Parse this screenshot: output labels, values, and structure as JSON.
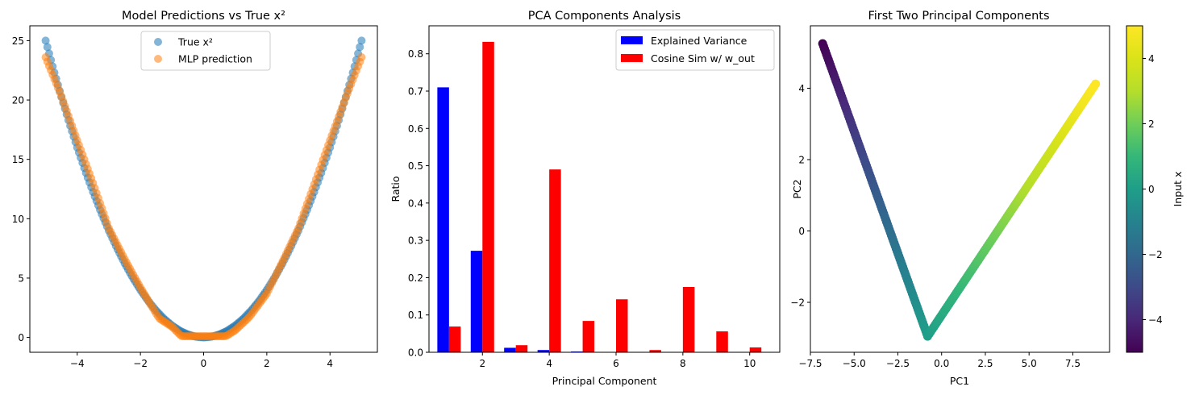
{
  "chart_data": [
    {
      "type": "scatter",
      "title": "Model Predictions vs True x²",
      "xlabel": "",
      "ylabel": "",
      "xlim": [
        -5.5,
        5.5
      ],
      "ylim": [
        -1.25,
        26.25
      ],
      "xticks": [
        -4,
        -2,
        0,
        2,
        4
      ],
      "xtick_labels": [
        "−4",
        "−2",
        "0",
        "2",
        "4"
      ],
      "yticks": [
        0,
        5,
        10,
        15,
        20,
        25
      ],
      "ytick_labels": [
        "0",
        "5",
        "10",
        "15",
        "20",
        "25"
      ],
      "legend_position": "top-center",
      "series": [
        {
          "name": "True x²",
          "color": "#1f77b4",
          "x": [
            -5,
            -4.75,
            -4.5,
            -4.25,
            -4,
            -3.75,
            -3.5,
            -3.25,
            -3,
            -2.75,
            -2.5,
            -2.25,
            -2,
            -1.75,
            -1.5,
            -1.25,
            -1,
            -0.75,
            -0.5,
            -0.25,
            0,
            0.25,
            0.5,
            0.75,
            1,
            1.25,
            1.5,
            1.75,
            2,
            2.25,
            2.5,
            2.75,
            3,
            3.25,
            3.5,
            3.75,
            4,
            4.25,
            4.5,
            4.75,
            5
          ],
          "y": [
            25,
            22.56,
            20.25,
            18.06,
            16,
            14.06,
            12.25,
            10.56,
            9,
            7.56,
            6.25,
            5.06,
            4,
            3.06,
            2.25,
            1.56,
            1,
            0.56,
            0.25,
            0.06,
            0,
            0.06,
            0.25,
            0.56,
            1,
            1.56,
            2.25,
            3.06,
            4,
            5.06,
            6.25,
            7.56,
            9,
            10.56,
            12.25,
            14.06,
            16,
            18.06,
            20.25,
            22.56,
            25
          ]
        },
        {
          "name": "MLP prediction",
          "color": "#ff7f0e",
          "x": [
            -5,
            -4.5,
            -4,
            -3.5,
            -3,
            -2.5,
            -2,
            -1.5,
            -1.4,
            -1,
            -0.7,
            0,
            0.7,
            1,
            1.4,
            1.5,
            2,
            2.5,
            3,
            3.5,
            4,
            4.5,
            5
          ],
          "y": [
            23.6,
            20.3,
            16.6,
            13.0,
            9.2,
            6.6,
            4.2,
            2.0,
            1.6,
            0.9,
            0.1,
            0.1,
            0.1,
            0.6,
            1.6,
            1.9,
            3.7,
            6.4,
            9.2,
            12.9,
            16.6,
            20.2,
            23.6
          ]
        }
      ]
    },
    {
      "type": "bar",
      "title": "PCA Components Analysis",
      "xlabel": "Principal Component",
      "ylabel": "Ratio",
      "xlim": [
        0.4,
        10.9
      ],
      "ylim": [
        0,
        0.875
      ],
      "xticks": [
        2,
        4,
        6,
        8,
        10
      ],
      "xtick_labels": [
        "2",
        "4",
        "6",
        "8",
        "10"
      ],
      "yticks": [
        0.0,
        0.1,
        0.2,
        0.3,
        0.4,
        0.5,
        0.6,
        0.7,
        0.8
      ],
      "ytick_labels": [
        "0.0",
        "0.1",
        "0.2",
        "0.3",
        "0.4",
        "0.5",
        "0.6",
        "0.7",
        "0.8"
      ],
      "legend_position": "top-right",
      "categories": [
        1,
        2,
        3,
        4,
        5,
        6,
        7,
        8,
        9,
        10
      ],
      "series": [
        {
          "name": "Explained Variance",
          "color": "#0000ff",
          "values": [
            0.71,
            0.272,
            0.012,
            0.006,
            0.002,
            0.001,
            0.0,
            0.0,
            0.0,
            0.0
          ]
        },
        {
          "name": "Cosine Sim w/ w_out",
          "color": "#ff0000",
          "values": [
            0.069,
            0.832,
            0.019,
            0.49,
            0.084,
            0.142,
            0.006,
            0.175,
            0.056,
            0.013
          ]
        }
      ]
    },
    {
      "type": "scatter",
      "title": "First Two Principal Components",
      "xlabel": "PC1",
      "ylabel": "PC2",
      "xlim": [
        -7.5,
        9.6
      ],
      "ylim": [
        -3.4,
        5.75
      ],
      "xticks": [
        -7.5,
        -5.0,
        -2.5,
        0.0,
        2.5,
        5.0,
        7.5
      ],
      "xtick_labels": [
        "−7.5",
        "−5.0",
        "−2.5",
        "0.0",
        "2.5",
        "5.0",
        "7.5"
      ],
      "yticks": [
        -2,
        0,
        2,
        4
      ],
      "ytick_labels": [
        "−2",
        "0",
        "2",
        "4"
      ],
      "colorbar": {
        "label": "Input x",
        "cmap": "viridis",
        "range": [
          -5,
          5
        ],
        "ticks": [
          -4,
          -2,
          0,
          2,
          4
        ],
        "tick_labels": [
          "−4",
          "−2",
          "0",
          "2",
          "4"
        ]
      },
      "points": {
        "x": [
          -6.8,
          -0.8,
          8.8
        ],
        "y": [
          5.25,
          -2.95,
          4.12
        ],
        "input_x": [
          -5,
          0,
          5
        ]
      }
    }
  ]
}
